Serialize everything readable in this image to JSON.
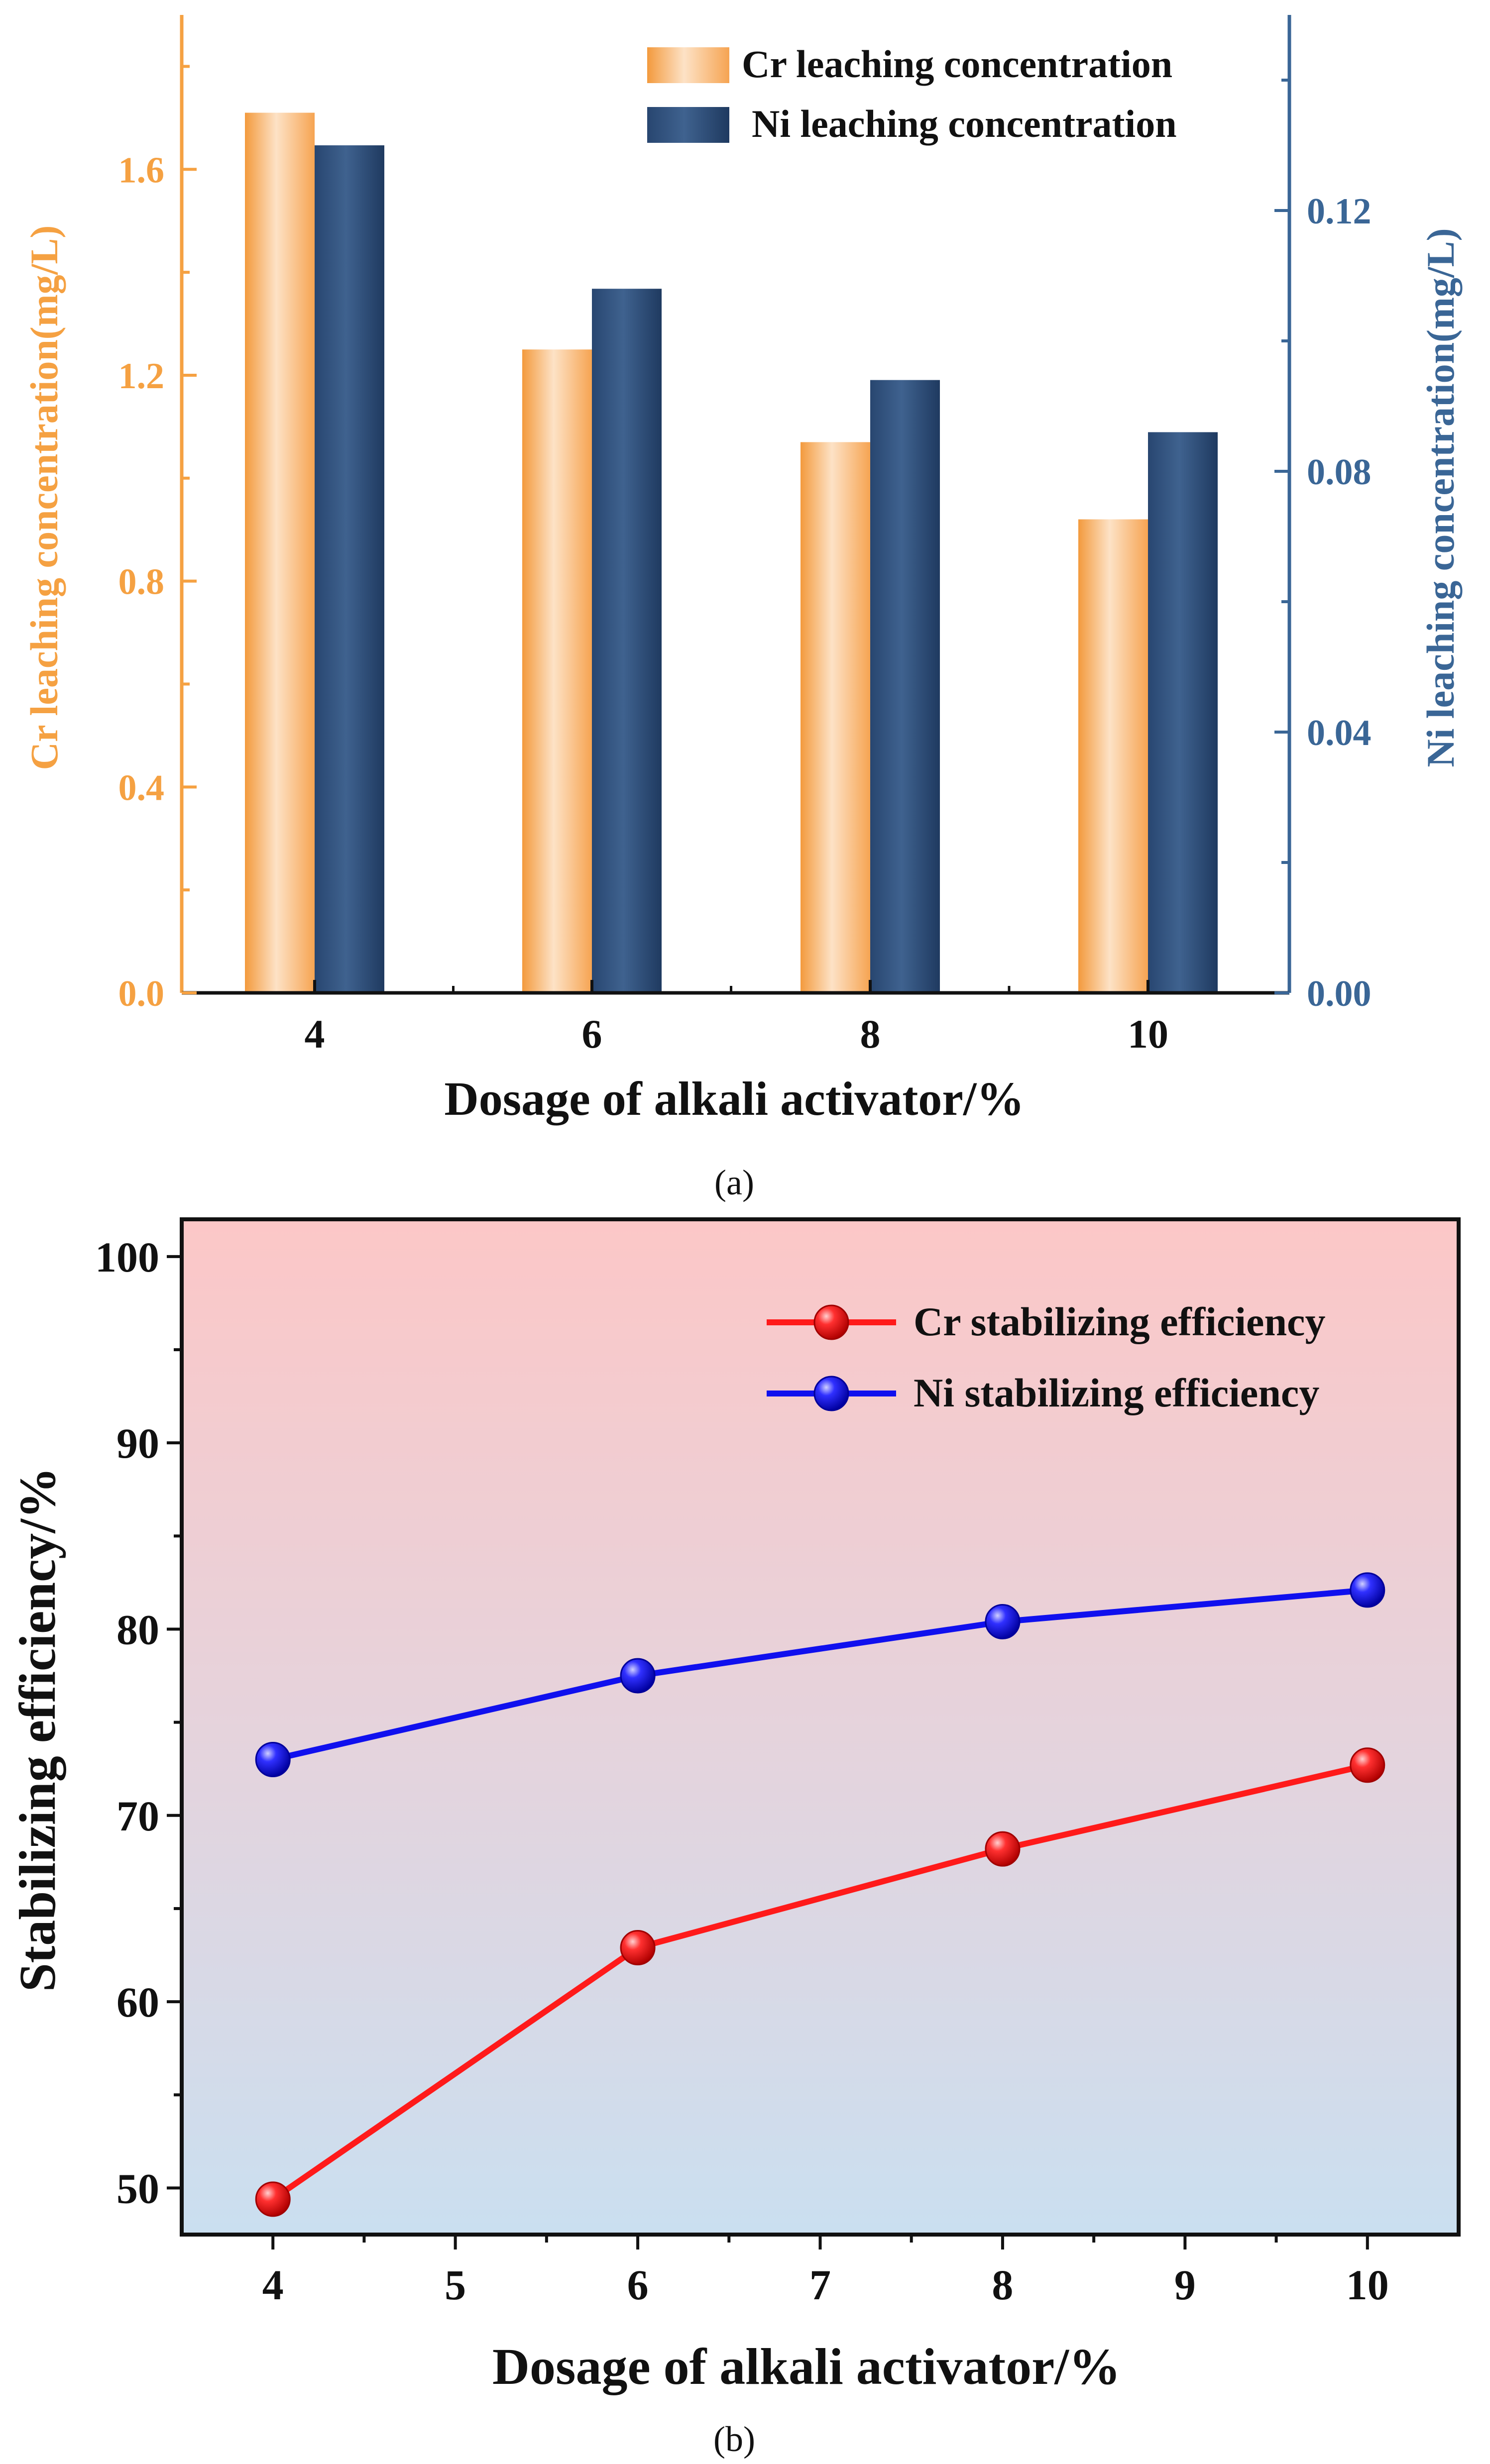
{
  "colors": {
    "cr_bar": "#f7a14a",
    "ni_bar": "#2e4e7a",
    "cr_axis": "#f5a142",
    "ni_axis": "#3a6696",
    "cr_line": "#ff1a1a",
    "ni_line": "#1010ee",
    "axis_black": "#111111",
    "bg_top": "#fbc8c8",
    "bg_bottom": "#cddff0"
  },
  "chart_data": [
    {
      "type": "bar",
      "panel_label": "(a)",
      "categories": [
        "4",
        "6",
        "8",
        "10"
      ],
      "xlabel": "Dosage of alkali activator/%",
      "series": [
        {
          "name": "Cr leaching concentration",
          "axis": "left",
          "values": [
            1.71,
            1.25,
            1.07,
            0.92
          ]
        },
        {
          "name": "Ni leaching concentration",
          "axis": "right",
          "values": [
            0.13,
            0.108,
            0.094,
            0.086
          ]
        }
      ],
      "ylabel_left": "Cr leaching concentration(mg/L)",
      "ylabel_right": "Ni leaching concentration(mg/L)",
      "ylim_left": [
        0,
        1.9
      ],
      "ylim_right": [
        0,
        0.15
      ],
      "yticks_left": [
        "0.0",
        "0.4",
        "0.8",
        "1.2",
        "1.6"
      ],
      "yticks_right": [
        "0.00",
        "0.04",
        "0.08",
        "0.12"
      ],
      "legend_position": "top-right"
    },
    {
      "type": "line",
      "panel_label": "(b)",
      "x": [
        4,
        6,
        8,
        10
      ],
      "xticks": [
        "4",
        "5",
        "6",
        "7",
        "8",
        "9",
        "10"
      ],
      "xlim": [
        3.5,
        10.5
      ],
      "xlabel": "Dosage of alkali activator/%",
      "ylabel": "Stabilizing efficiency/%",
      "ylim": [
        47.5,
        102
      ],
      "yticks": [
        "50",
        "60",
        "70",
        "80",
        "90",
        "100"
      ],
      "series": [
        {
          "name": "Cr stabilizing efficiency",
          "values": [
            49.4,
            62.9,
            68.2,
            72.7
          ]
        },
        {
          "name": "Ni stabilizing efficiency",
          "values": [
            73.0,
            77.5,
            80.4,
            82.1
          ]
        }
      ],
      "legend_position": "top-right"
    }
  ]
}
